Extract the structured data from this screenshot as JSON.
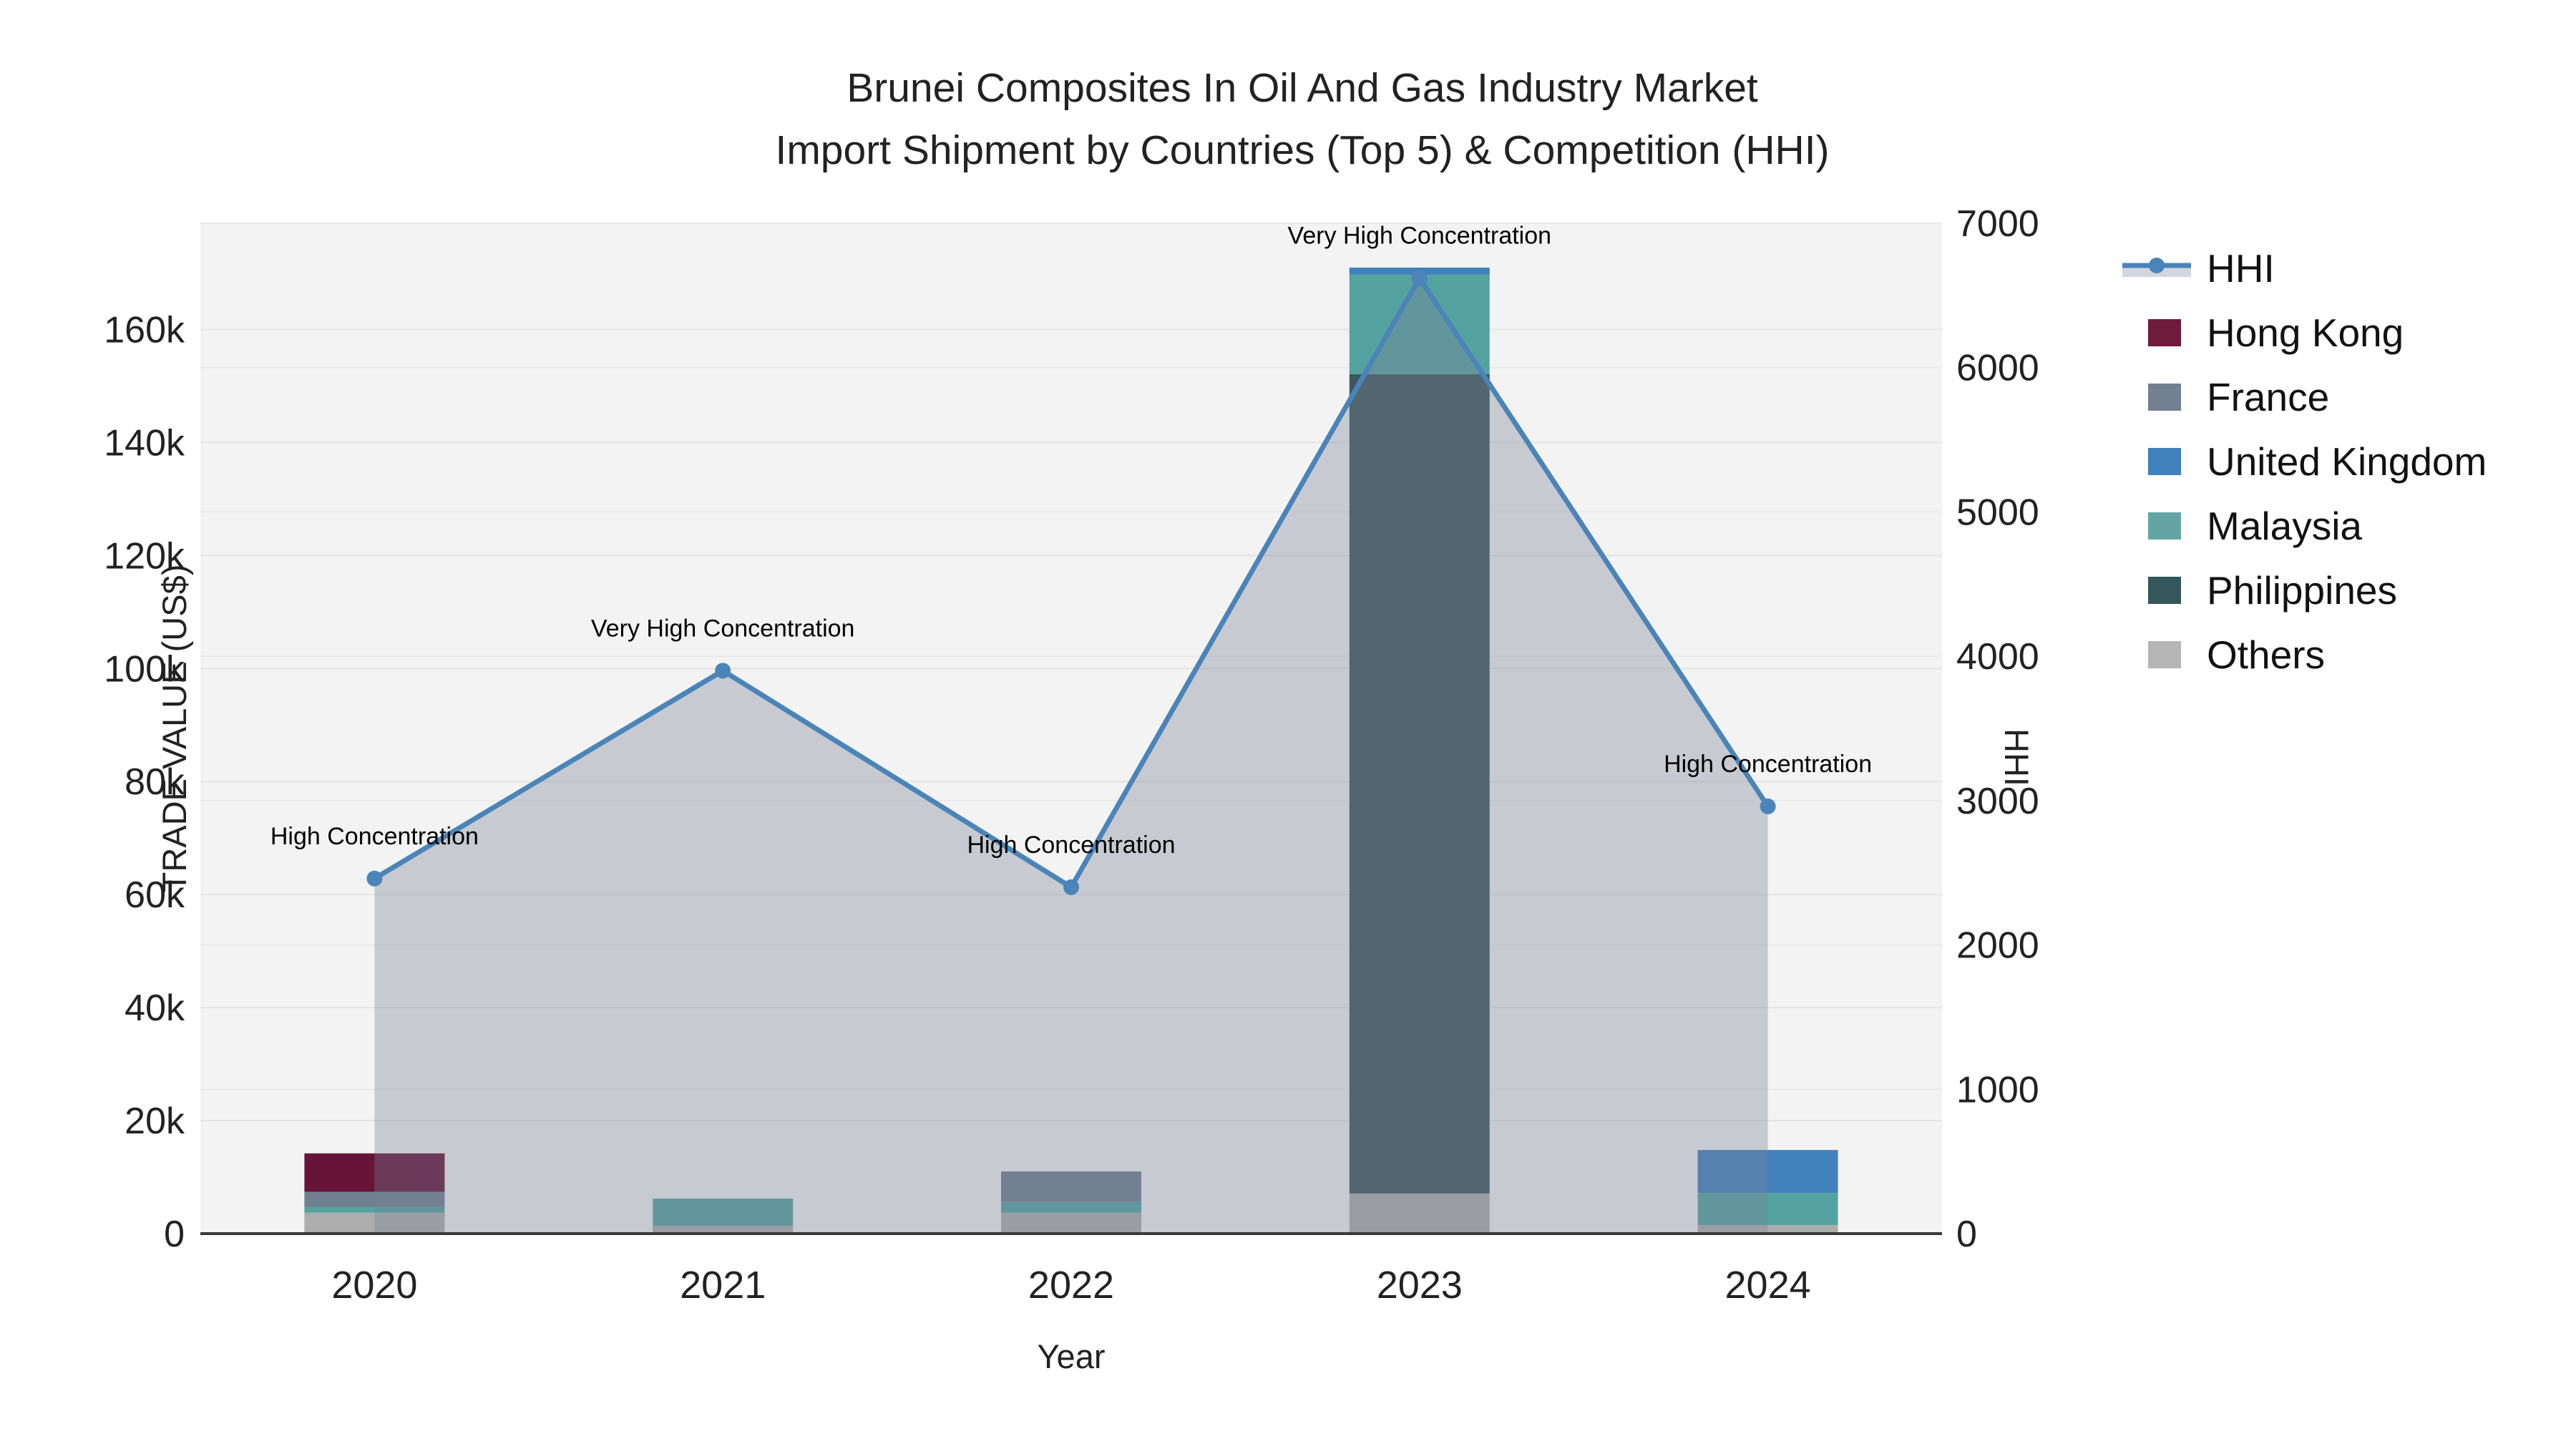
{
  "title": {
    "line1": "Brunei Composites In Oil And Gas Industry Market",
    "line2": "Import Shipment by Countries (Top 5) & Competition (HHI)"
  },
  "axes": {
    "x_title": "Year",
    "y_left_title": "TRADE VALUE (US$)",
    "y_right_title": "HHI"
  },
  "colors": {
    "plot_background": "#f2f3f2",
    "grid_left": "#e1e4e4",
    "grid_right": "#e7e9e9",
    "axis_line": "#3a3a3a",
    "annotation_text": "#000000",
    "hhi_line": "#4a84b8",
    "hhi_area_fill": "rgba(120,128,148,0.35)",
    "legend_area_band": "#d2d6dd"
  },
  "chart_data": {
    "type": "bar+line dual-axis (stacked bars on left axis, HHI line on right axis)",
    "categories": [
      "2020",
      "2021",
      "2022",
      "2023",
      "2024"
    ],
    "bar_series_bottom_to_top": [
      {
        "name": "Others",
        "color": "#adadad",
        "values": [
          3700,
          1400,
          3700,
          7100,
          1500
        ]
      },
      {
        "name": "Philippines",
        "color": "#3c585e",
        "values": [
          0,
          0,
          0,
          145000,
          0
        ]
      },
      {
        "name": "Malaysia",
        "color": "#55a3a0",
        "values": [
          1000,
          4800,
          1900,
          17600,
          5700
        ]
      },
      {
        "name": "United Kingdom",
        "color": "#4181bc",
        "values": [
          0,
          0,
          0,
          1250,
          7600
        ]
      },
      {
        "name": "France",
        "color": "#70808f",
        "values": [
          2700,
          0,
          5400,
          0,
          0
        ]
      },
      {
        "name": "Hong Kong",
        "color": "#661539",
        "values": [
          6800,
          0,
          0,
          0,
          0
        ]
      }
    ],
    "line_series": {
      "name": "HHI",
      "values": [
        2460,
        3900,
        2400,
        6620,
        2960
      ]
    },
    "annotations": [
      "High Concentration",
      "Very High Concentration",
      "High Concentration",
      "Very High Concentration",
      "High Concentration"
    ],
    "y_left": {
      "label": "TRADE VALUE (US$)",
      "tick_labels": [
        "0",
        "20k",
        "40k",
        "60k",
        "80k",
        "100k",
        "120k",
        "140k",
        "160k"
      ],
      "tick_values": [
        0,
        20000,
        40000,
        60000,
        80000,
        100000,
        120000,
        140000,
        160000
      ],
      "max": 178800,
      "grid": true
    },
    "y_right": {
      "label": "HHI",
      "tick_labels": [
        "0",
        "1000",
        "2000",
        "3000",
        "4000",
        "5000",
        "6000",
        "7000"
      ],
      "tick_values": [
        0,
        1000,
        2000,
        3000,
        4000,
        5000,
        6000,
        7000
      ],
      "max": 7000,
      "grid": true
    },
    "legend_position": "right"
  },
  "legend": {
    "items": [
      {
        "label": "HHI",
        "type": "line",
        "color": "#4a84b8"
      },
      {
        "label": "Hong Kong",
        "type": "bar",
        "color": "#6e1b3c"
      },
      {
        "label": "France",
        "type": "bar",
        "color": "#72808f"
      },
      {
        "label": "United Kingdom",
        "type": "bar",
        "color": "#4181bc"
      },
      {
        "label": "Malaysia",
        "type": "bar",
        "color": "#64a5a3"
      },
      {
        "label": "Philippines",
        "type": "bar",
        "color": "#35565b"
      },
      {
        "label": "Others",
        "type": "bar",
        "color": "#b5b5b5"
      }
    ]
  }
}
